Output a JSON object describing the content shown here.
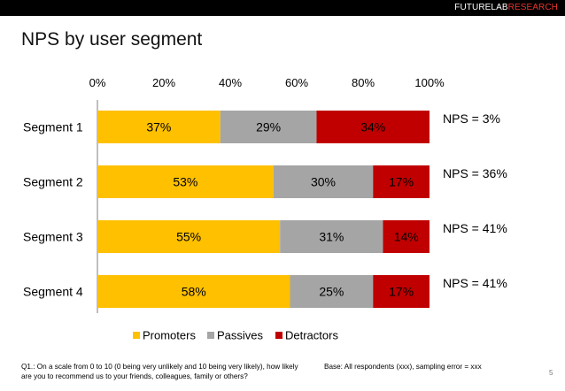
{
  "brand": {
    "part1": "FUTURELAB",
    "part2": "RESEARCH"
  },
  "title": "NPS by user segment",
  "chart_data": {
    "type": "bar",
    "orientation": "horizontal",
    "stacked": true,
    "x_ticks": [
      "0%",
      "20%",
      "40%",
      "60%",
      "80%",
      "100%"
    ],
    "xlim": [
      0,
      100
    ],
    "grid": false,
    "legend_position": "bottom",
    "categories": [
      "Segment 1",
      "Segment 2",
      "Segment 3",
      "Segment 4"
    ],
    "series": [
      {
        "name": "Promoters",
        "color": "#ffc000",
        "values": [
          37,
          53,
          55,
          58
        ],
        "labels": [
          "37%",
          "53%",
          "55%",
          "58%"
        ]
      },
      {
        "name": "Passives",
        "color": "#a5a5a5",
        "values": [
          29,
          30,
          31,
          25
        ],
        "labels": [
          "29%",
          "30%",
          "31%",
          "25%"
        ]
      },
      {
        "name": "Detractors",
        "color": "#c00000",
        "values": [
          34,
          17,
          14,
          17
        ],
        "labels": [
          "34%",
          "17%",
          "14%",
          "17%"
        ]
      }
    ],
    "annotations": [
      "NPS = 3%",
      "NPS = 36%",
      "NPS = 41%",
      "NPS = 41%"
    ]
  },
  "footer": {
    "question": "Q1.: On a scale from 0 to 10 (0 being very unlikely and 10 being very likely), how likely are you to recommend us to your friends, colleagues, family or others?",
    "base": "Base: All respondents (xxx), sampling error = xxx",
    "page_number": "5"
  }
}
